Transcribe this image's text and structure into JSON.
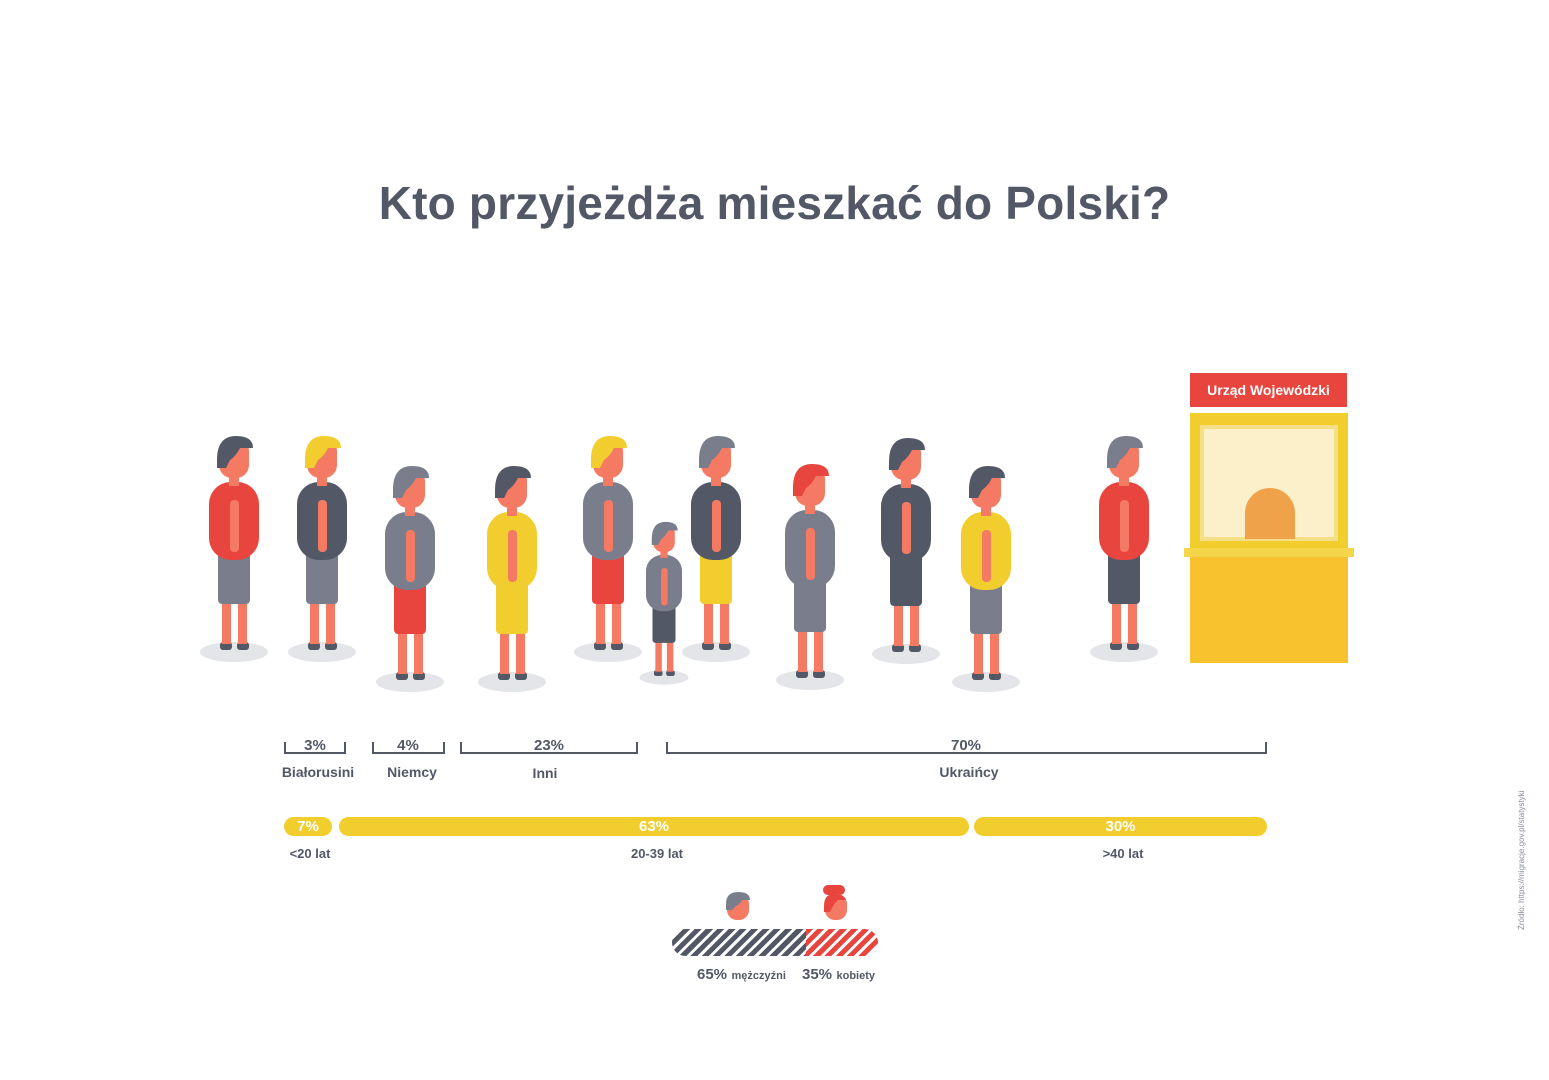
{
  "title": "Kto przyjeżdża mieszkać do Polski?",
  "office_sign": "Urząd Wojewódzki",
  "source": "Źródło: https://migracje.gov.pl/statystyki",
  "colors": {
    "text": "#525866",
    "red": "#e8453f",
    "yellow": "#f2cd2e",
    "gray": "#7a7e8c",
    "dark": "#525866",
    "skin": "#f57a63"
  },
  "chart_data": [
    {
      "type": "bar",
      "title": "",
      "categories": [
        "Białorusini",
        "Niemcy",
        "Inni",
        "Ukraińcy"
      ],
      "values": [
        3,
        4,
        23,
        70
      ],
      "labels": [
        "3%",
        "4%",
        "23%",
        "70%"
      ],
      "unit": "%"
    },
    {
      "type": "bar",
      "title": "",
      "categories": [
        "<20 lat",
        "20-39 lat",
        ">40 lat"
      ],
      "values": [
        7,
        63,
        30
      ],
      "labels": [
        "7%",
        "63%",
        "30%"
      ],
      "unit": "%"
    },
    {
      "type": "bar",
      "title": "",
      "categories": [
        "mężczyźni",
        "kobiety"
      ],
      "values": [
        65,
        35
      ],
      "labels": [
        "65%",
        "35%"
      ],
      "unit": "%"
    }
  ],
  "people": [
    {
      "icon": "man-with-bag-icon",
      "top": "red",
      "bottom": "gray",
      "hair": "dark"
    },
    {
      "icon": "woman-blonde-icon",
      "top": "dark",
      "bottom": "gray",
      "hair": "yellow"
    },
    {
      "icon": "person-with-papers-icon",
      "top": "gray",
      "bottom": "red",
      "hair": "gray"
    },
    {
      "icon": "woman-with-handbag-icon",
      "top": "yellow",
      "bottom": "yellow",
      "hair": "dark"
    },
    {
      "icon": "woman-red-skirt-icon",
      "top": "gray",
      "bottom": "red",
      "hair": "yellow"
    },
    {
      "icon": "child-with-backpack-icon",
      "top": "gray",
      "bottom": "dark",
      "hair": "gray"
    },
    {
      "icon": "man-with-papers-icon",
      "top": "dark",
      "bottom": "yellow",
      "hair": "gray"
    },
    {
      "icon": "woman-gray-dress-icon",
      "top": "gray",
      "bottom": "gray",
      "hair": "red"
    },
    {
      "icon": "man-with-backpack-icon",
      "top": "dark",
      "bottom": "dark",
      "hair": "dark"
    },
    {
      "icon": "woman-yellow-top-icon",
      "top": "yellow",
      "bottom": "gray",
      "hair": "dark"
    },
    {
      "icon": "elderly-woman-icon",
      "top": "red",
      "bottom": "dark",
      "hair": "gray"
    }
  ]
}
